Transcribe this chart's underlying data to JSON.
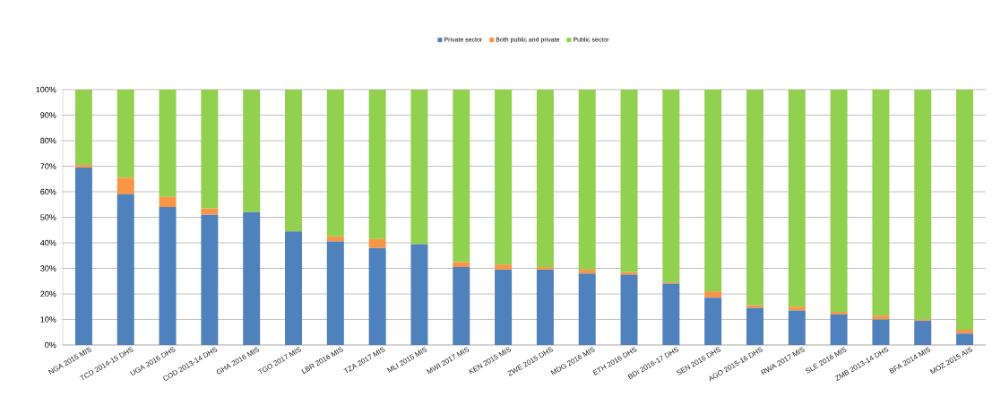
{
  "chart_data": {
    "type": "bar",
    "stacked": true,
    "categories": [
      "NGA 2015 MIS",
      "TCD 2014-15 DHS",
      "UGA 2016 DHS",
      "COD 2013-14 DHS",
      "GHA 2016 MIS",
      "TGO 2017 MIS",
      "LBR 2016 MIS",
      "TZA 2017 MIS",
      "MLI 2015 MIS",
      "MWI 2017 MIS",
      "KEN 2015 MIS",
      "ZWE 2015 DHS",
      "MDG 2016 MIS",
      "ETH 2016 DHS",
      "BDI 2016-17 DHS",
      "SEN 2016 DHS",
      "AGO 2015-16 DHS",
      "RWA 2017 MIS",
      "SLE 2016 MIS",
      "ZMB 2013-14 DHS",
      "BFA 2014 MIS",
      "MOZ 2015 AIS"
    ],
    "series": [
      {
        "name": "Private sector",
        "color": "#4f81bd",
        "values": [
          69.5,
          59,
          54,
          51,
          52,
          44.5,
          40.5,
          38,
          39.5,
          30.5,
          29.5,
          29.5,
          28,
          27.5,
          24,
          18.5,
          14.5,
          13.5,
          12,
          10,
          9.5,
          4.5
        ]
      },
      {
        "name": "Both public and private",
        "color": "#f79646",
        "values": [
          1,
          6.5,
          4,
          2.5,
          0,
          0,
          2,
          3.5,
          0,
          2,
          2,
          1,
          1.5,
          1,
          0.5,
          2.5,
          1,
          1.5,
          1,
          1.5,
          0.5,
          1.5
        ]
      },
      {
        "name": "Public sector",
        "color": "#92d050",
        "values": [
          29.5,
          34.5,
          42,
          46.5,
          48,
          55.5,
          57.5,
          58.5,
          60.5,
          67.5,
          68.5,
          69.5,
          70.5,
          71.5,
          75.5,
          79,
          84.5,
          85,
          87,
          88.5,
          90,
          94
        ]
      }
    ],
    "ylim": [
      0,
      100
    ],
    "yticks": [
      {
        "value": 0,
        "label": "0%"
      },
      {
        "value": 10,
        "label": "10%"
      },
      {
        "value": 20,
        "label": "20%"
      },
      {
        "value": 30,
        "label": "30%"
      },
      {
        "value": 40,
        "label": "40%"
      },
      {
        "value": 50,
        "label": "50%"
      },
      {
        "value": 60,
        "label": "60%"
      },
      {
        "value": 70,
        "label": "70%"
      },
      {
        "value": 80,
        "label": "80%"
      },
      {
        "value": 90,
        "label": "90%"
      },
      {
        "value": 100,
        "label": "100%"
      }
    ],
    "grid": "y",
    "legend": "top"
  }
}
